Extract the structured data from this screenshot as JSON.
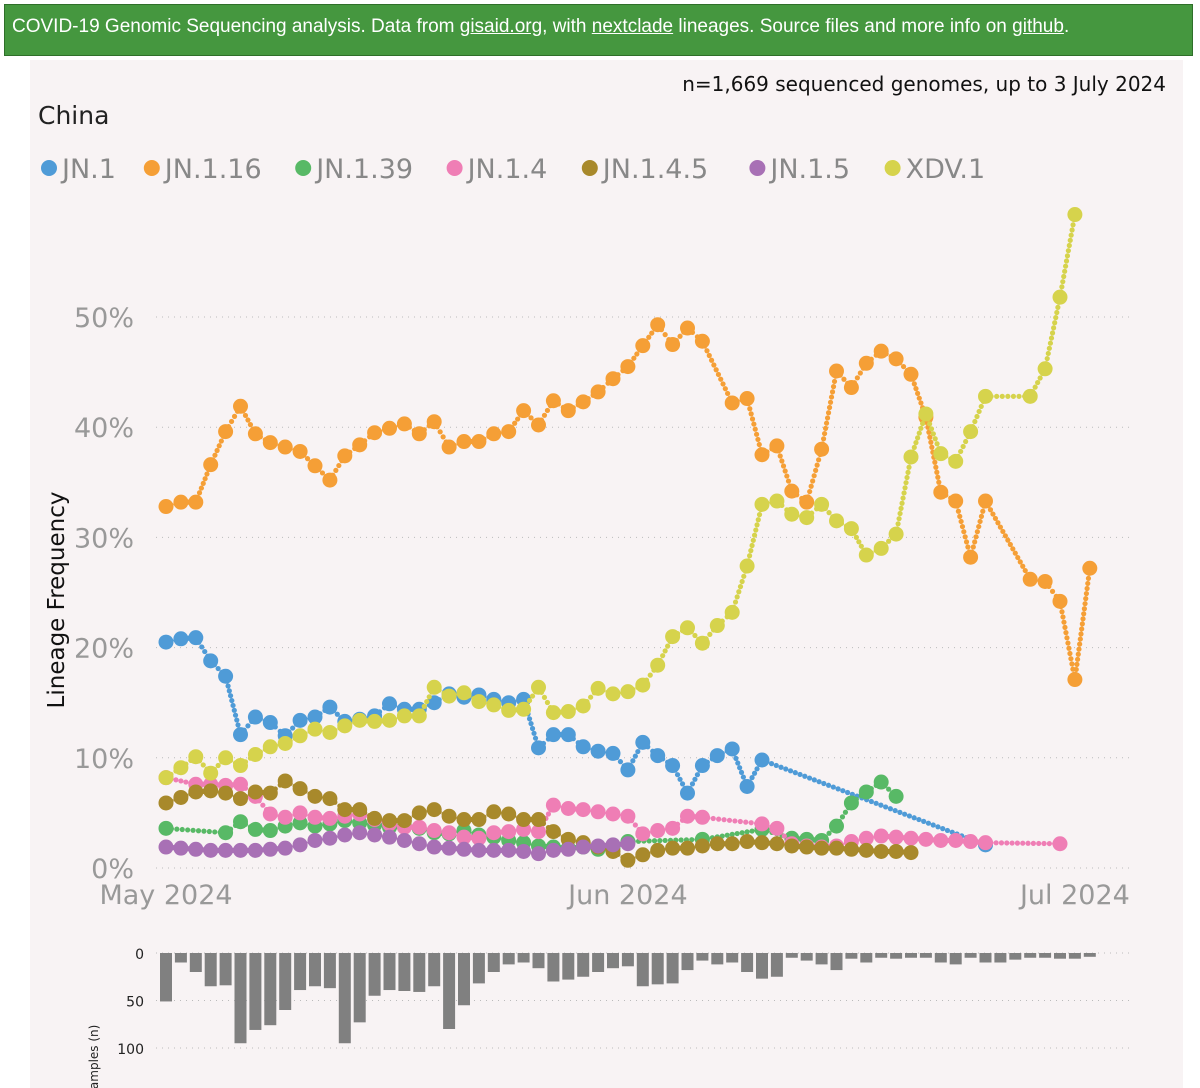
{
  "banner": {
    "prefix": "COVID-19 Genomic Sequencing analysis. Data from ",
    "link1": "gisaid.org",
    "mid1": ", with ",
    "link2": "nextclade",
    "mid2": " lineages. Source files and more info on ",
    "link3": "github",
    "suffix": ".",
    "bg_color": "#45973f"
  },
  "chart_data": {
    "type": "line",
    "title": "China",
    "subtitle": "n=1,669 sequenced genomes, up to 3 July 2024",
    "ylabel": "Lineage Frequency",
    "xlabel": "",
    "ylim": [
      0,
      60
    ],
    "yticks": [
      "0%",
      "10%",
      "20%",
      "30%",
      "40%",
      "50%"
    ],
    "xticks": [
      {
        "day": 0,
        "label": "May 2024"
      },
      {
        "day": 31,
        "label": "Jun 2024"
      },
      {
        "day": 61,
        "label": "Jul 2024"
      }
    ],
    "series": [
      {
        "name": "JN.1",
        "color": "#4f9bd7",
        "days": [
          0,
          1,
          2,
          3,
          4,
          5,
          6,
          7,
          8,
          9,
          10,
          11,
          12,
          13,
          14,
          15,
          16,
          17,
          18,
          19,
          20,
          21,
          22,
          23,
          24,
          25,
          26,
          27,
          28,
          29,
          30,
          31,
          32,
          33,
          34,
          35,
          36,
          37,
          38,
          39,
          40,
          41,
          42,
          43,
          48,
          55
        ],
        "values": [
          20.5,
          20.8,
          20.9,
          18.8,
          17.4,
          12.1,
          13.7,
          13.2,
          12,
          13.4,
          13.7,
          14.6,
          13.3,
          13.5,
          13.8,
          14.9,
          14.4,
          14.4,
          15,
          15.8,
          15.5,
          15.7,
          15.3,
          15,
          15.3,
          10.9,
          12.1,
          12.1,
          11,
          10.6,
          10.4,
          8.9,
          11.4,
          10.2,
          9.3,
          6.8,
          9.3,
          10.2,
          10.8,
          7.4,
          9.8,
          null,
          null,
          null,
          null,
          2.1
        ]
      },
      {
        "name": "JN.1.16",
        "color": "#f59f36",
        "days": [
          0,
          1,
          2,
          3,
          4,
          5,
          6,
          7,
          8,
          9,
          10,
          11,
          12,
          13,
          14,
          15,
          16,
          17,
          18,
          19,
          20,
          21,
          22,
          23,
          24,
          25,
          26,
          27,
          28,
          29,
          30,
          31,
          32,
          33,
          34,
          35,
          36,
          37,
          38,
          39,
          40,
          41,
          42,
          43,
          44,
          45,
          46,
          47,
          48,
          49,
          50,
          51,
          52,
          53,
          54,
          55,
          56,
          57,
          58,
          59,
          60,
          61,
          62
        ],
        "values": [
          32.8,
          33.2,
          33.2,
          36.6,
          39.6,
          41.9,
          39.4,
          38.6,
          38.2,
          37.8,
          36.5,
          35.2,
          37.4,
          38.4,
          39.5,
          39.9,
          40.3,
          39.4,
          40.5,
          38.2,
          38.7,
          38.7,
          39.4,
          39.6,
          41.5,
          40.2,
          42.4,
          41.5,
          42.3,
          43.2,
          44.4,
          45.5,
          47.4,
          49.3,
          47.5,
          49,
          47.8,
          null,
          42.2,
          42.6,
          37.5,
          38.3,
          34.2,
          33.2,
          38,
          45.1,
          43.6,
          45.8,
          46.9,
          46.2,
          44.8,
          40.9,
          34.1,
          33.3,
          28.2,
          33.3,
          null,
          null,
          26.2,
          26,
          24.2,
          17.1,
          27.2
        ]
      },
      {
        "name": "JN.1.39",
        "color": "#58b966",
        "days": [
          0,
          4,
          5,
          6,
          7,
          8,
          9,
          10,
          11,
          12,
          13,
          14,
          15,
          16,
          17,
          18,
          19,
          20,
          21,
          22,
          23,
          24,
          25,
          26,
          27,
          28,
          29,
          30,
          31,
          32,
          33,
          34,
          35,
          36,
          40,
          42,
          43,
          44,
          45,
          46,
          47,
          48,
          49,
          50,
          51,
          52,
          53
        ],
        "values": [
          3.6,
          3.2,
          4.2,
          3.5,
          3.4,
          3.8,
          4.1,
          3.8,
          4.0,
          4.3,
          4.1,
          3.9,
          3.7,
          3.8,
          3.6,
          3.2,
          3.1,
          3.4,
          3.0,
          2.8,
          2.5,
          2.3,
          2.0,
          1.9,
          1.8,
          1.9,
          1.7,
          1.8,
          2.4,
          null,
          null,
          null,
          null,
          2.6,
          3.5,
          2.7,
          2.6,
          2.5,
          3.8,
          5.9,
          6.9,
          7.8,
          6.5,
          null,
          null,
          null,
          null
        ]
      },
      {
        "name": "JN.1.4",
        "color": "#ef7eb5",
        "days": [
          0,
          2,
          3,
          4,
          5,
          6,
          7,
          8,
          9,
          10,
          11,
          12,
          13,
          14,
          15,
          16,
          17,
          18,
          19,
          20,
          21,
          22,
          23,
          24,
          25,
          26,
          27,
          28,
          29,
          30,
          31,
          32,
          33,
          34,
          35,
          36,
          40,
          41,
          42,
          43,
          44,
          45,
          46,
          47,
          48,
          49,
          50,
          51,
          52,
          53,
          54,
          55,
          60
        ],
        "values": [
          8.2,
          7.6,
          7.6,
          7.5,
          7.6,
          6.5,
          4.9,
          4.6,
          5.0,
          4.6,
          4.5,
          4.7,
          4.9,
          4.4,
          4.0,
          3.7,
          3.7,
          3.4,
          3.2,
          2.8,
          2.7,
          3.2,
          3.3,
          3.5,
          3.3,
          5.7,
          5.4,
          5.3,
          5.1,
          4.9,
          4.7,
          3.1,
          3.4,
          3.6,
          4.7,
          4.6,
          4.0,
          3.6,
          2.2,
          2.0,
          1.9,
          2.0,
          2.4,
          2.7,
          2.9,
          2.8,
          2.7,
          2.6,
          2.5,
          2.5,
          2.4,
          2.3,
          2.2
        ]
      },
      {
        "name": "JN.1.4.5",
        "color": "#a8892b",
        "days": [
          0,
          1,
          2,
          3,
          4,
          5,
          6,
          7,
          8,
          9,
          10,
          11,
          12,
          13,
          14,
          15,
          16,
          17,
          18,
          19,
          20,
          21,
          22,
          23,
          24,
          25,
          26,
          27,
          28,
          29,
          30,
          31,
          32,
          33,
          34,
          35,
          36,
          37,
          38,
          39,
          40,
          41,
          42,
          43,
          44,
          45,
          46,
          47,
          48,
          49,
          50
        ],
        "values": [
          5.9,
          6.4,
          6.9,
          7.0,
          6.8,
          6.3,
          6.9,
          6.8,
          7.9,
          7.2,
          6.5,
          6.3,
          5.3,
          5.3,
          4.5,
          4.3,
          4.3,
          5.0,
          5.3,
          4.7,
          4.4,
          4.4,
          5.1,
          4.9,
          4.4,
          4.4,
          3.3,
          2.6,
          2.3,
          1.9,
          1.5,
          0.7,
          1.2,
          1.6,
          1.8,
          1.8,
          2.0,
          2.2,
          2.2,
          2.4,
          2.3,
          2.2,
          2.0,
          1.9,
          1.8,
          1.8,
          1.7,
          1.6,
          1.5,
          1.5,
          1.4
        ]
      },
      {
        "name": "JN.1.5",
        "color": "#a870b5",
        "days": [
          0,
          1,
          2,
          3,
          4,
          5,
          6,
          7,
          8,
          9,
          10,
          11,
          12,
          13,
          14,
          15,
          16,
          17,
          18,
          19,
          20,
          21,
          22,
          23,
          24,
          25,
          26,
          27,
          28,
          29,
          30,
          31
        ],
        "values": [
          1.9,
          1.8,
          1.7,
          1.6,
          1.6,
          1.6,
          1.6,
          1.7,
          1.8,
          2.1,
          2.5,
          2.7,
          3.0,
          3.2,
          3.0,
          2.8,
          2.5,
          2.2,
          1.9,
          1.8,
          1.7,
          1.6,
          1.6,
          1.6,
          1.5,
          1.3,
          1.6,
          1.7,
          1.9,
          2.0,
          2.1,
          2.2
        ]
      },
      {
        "name": "XDV.1",
        "color": "#d6d34c",
        "days": [
          0,
          1,
          2,
          3,
          4,
          5,
          6,
          7,
          8,
          9,
          10,
          11,
          12,
          13,
          14,
          15,
          16,
          17,
          18,
          19,
          20,
          21,
          22,
          23,
          24,
          25,
          26,
          27,
          28,
          29,
          30,
          31,
          32,
          33,
          34,
          35,
          36,
          37,
          38,
          39,
          40,
          41,
          42,
          43,
          44,
          45,
          46,
          47,
          48,
          49,
          50,
          51,
          52,
          53,
          54,
          55,
          56,
          57,
          58,
          59,
          60,
          61,
          62
        ],
        "values": [
          8.2,
          9.1,
          10.1,
          8.6,
          10.0,
          9.3,
          10.3,
          11,
          11.3,
          12.0,
          12.6,
          12.3,
          12.9,
          13.4,
          13.3,
          13.4,
          13.8,
          13.8,
          16.4,
          15.6,
          15.9,
          15.1,
          14.8,
          14.3,
          14.4,
          16.4,
          14.1,
          14.2,
          14.7,
          16.3,
          15.8,
          16.0,
          16.6,
          18.4,
          21.0,
          21.8,
          20.4,
          22.0,
          23.2,
          27.4,
          33,
          33.3,
          32.1,
          31.8,
          33.0,
          31.5,
          30.8,
          28.4,
          29.0,
          30.3,
          37.3,
          41.2,
          37.6,
          36.9,
          39.6,
          42.8,
          null,
          null,
          42.8,
          45.3,
          51.8,
          59.3,
          null
        ]
      }
    ],
    "samples": {
      "ylabel": "samples (n)",
      "yticks": [
        0,
        50,
        100
      ],
      "values": [
        51,
        10,
        20,
        35,
        34,
        95,
        81,
        76,
        60,
        39,
        35,
        37,
        95,
        73,
        45,
        39,
        40,
        41,
        35,
        80,
        55,
        32,
        20,
        12,
        10,
        16,
        30,
        28,
        25,
        20,
        16,
        14,
        35,
        33,
        32,
        18,
        8,
        12,
        10,
        20,
        27,
        25,
        5,
        8,
        12,
        18,
        6,
        10,
        5,
        6,
        5,
        5,
        10,
        12,
        5,
        10,
        10,
        7,
        5,
        5,
        6,
        6,
        4
      ]
    }
  }
}
